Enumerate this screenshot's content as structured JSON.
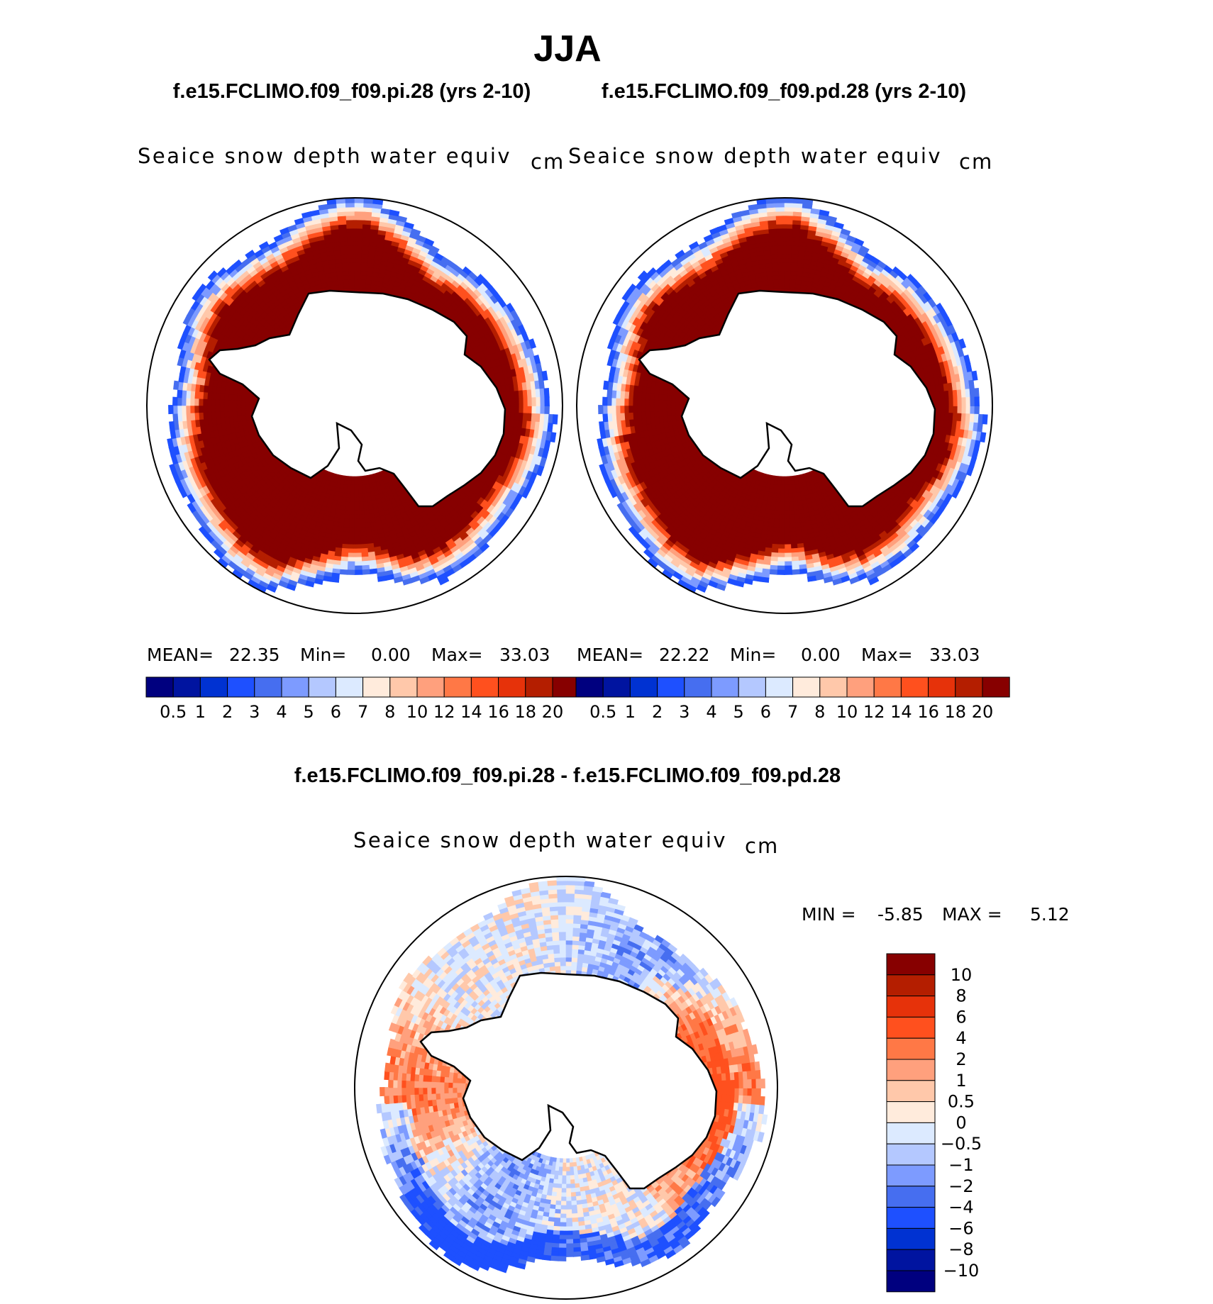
{
  "season": "JJA",
  "case_pi": "f.e15.FCLIMO.f09_f09.pi.28 (yrs 2-10)",
  "case_pd": "f.e15.FCLIMO.f09_f09.pd.28 (yrs 2-10)",
  "diff_title": "f.e15.FCLIMO.f09_f09.pi.28 - f.e15.FCLIMO.f09_f09.pd.28",
  "colors": {
    "abs_scale": [
      "#00007f",
      "#0014a0",
      "#0032d2",
      "#1e50ff",
      "#466ef0",
      "#7d9bff",
      "#b4c8ff",
      "#dceaff",
      "#ffebdc",
      "#ffc8aa",
      "#ffa07d",
      "#ff7846",
      "#ff501e",
      "#e6320a",
      "#b41e00",
      "#870000"
    ],
    "diff_scale": [
      "#00007f",
      "#0014a0",
      "#0032d2",
      "#1e50ff",
      "#466ef0",
      "#7d9bff",
      "#b4c8ff",
      "#dceaff",
      "#ffebdc",
      "#ffc8aa",
      "#ffa07d",
      "#ff7846",
      "#ff501e",
      "#e6320a",
      "#b41e00",
      "#870000"
    ]
  },
  "chart_data": [
    {
      "type": "heatmap",
      "projection": "south-polar-stereographic",
      "title": "Seaice snow depth water equiv",
      "units": "cm",
      "stats": {
        "mean_label": "MEAN=",
        "mean": "22.35",
        "min_label": "Min=",
        "min": "0.00",
        "max_label": "Max=",
        "max": "33.03"
      },
      "colorbar_ticks": [
        "0.5",
        "1",
        "2",
        "3",
        "4",
        "5",
        "6",
        "7",
        "8",
        "10",
        "12",
        "14",
        "16",
        "18",
        "20"
      ],
      "field": "Dark red (>20 cm) over most of the ice pack, thin red/blue fringe at ice edge"
    },
    {
      "type": "heatmap",
      "projection": "south-polar-stereographic",
      "title": "Seaice snow depth water equiv",
      "units": "cm",
      "stats": {
        "mean_label": "MEAN=",
        "mean": "22.22",
        "min_label": "Min=",
        "min": "0.00",
        "max_label": "Max=",
        "max": "33.03"
      },
      "colorbar_ticks": [
        "0.5",
        "1",
        "2",
        "3",
        "4",
        "5",
        "6",
        "7",
        "8",
        "10",
        "12",
        "14",
        "16",
        "18",
        "20"
      ],
      "field": "Dark red (>20 cm) over most of the ice pack, thin red/blue fringe at ice edge"
    },
    {
      "type": "heatmap",
      "projection": "south-polar-stereographic",
      "title": "Seaice snow depth water equiv",
      "units": "cm",
      "stats": {
        "min_label": "MIN =",
        "min": "-5.85",
        "max_label": "MAX =",
        "max": "5.12"
      },
      "colorbar_ticks": [
        "10",
        "8",
        "6",
        "4",
        "2",
        "1",
        "0.5",
        "0",
        "−0.5",
        "−1",
        "−2",
        "−4",
        "−6",
        "−8",
        "−10"
      ],
      "field": "Mostly light blue/light red differences; blue bands near Weddell/Ross outer edge, red in Pacific sector"
    }
  ]
}
